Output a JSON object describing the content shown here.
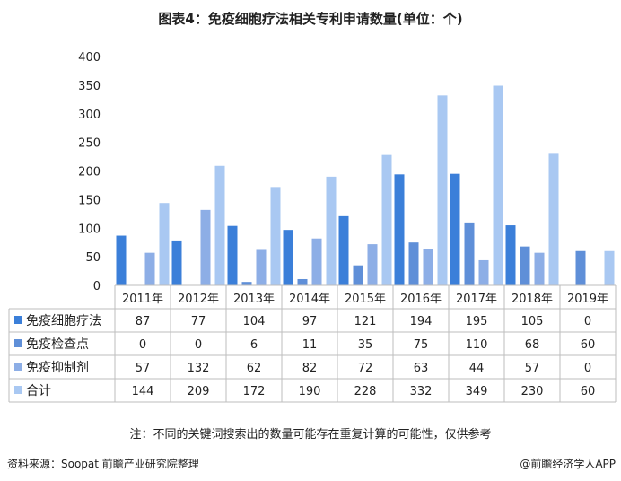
{
  "title": "图表4：免疫细胞疗法相关专利申请数量(单位：个)",
  "note": "注：不同的关键词搜索出的数量可能存在重复计算的可能性，仅供参考",
  "source": "资料来源：Soopat 前瞻产业研究院整理",
  "brand": "@前瞻经济学人APP",
  "colors": {
    "免疫细胞疗法": "#3b7fd9",
    "免疫检查点": "#5f8fd8",
    "免疫抑制剂": "#8daee6",
    "合计": "#a9c8f2"
  },
  "chart_data": {
    "type": "bar",
    "categories": [
      "2011年",
      "2012年",
      "2013年",
      "2014年",
      "2015年",
      "2016年",
      "2017年",
      "2018年",
      "2019年"
    ],
    "series": [
      {
        "name": "免疫细胞疗法",
        "values": [
          87,
          77,
          104,
          97,
          121,
          194,
          195,
          105,
          0
        ]
      },
      {
        "name": "免疫检查点",
        "values": [
          0,
          0,
          6,
          11,
          35,
          75,
          110,
          68,
          60
        ]
      },
      {
        "name": "免疫抑制剂",
        "values": [
          57,
          132,
          62,
          82,
          72,
          63,
          44,
          57,
          0
        ]
      },
      {
        "name": "合计",
        "values": [
          144,
          209,
          172,
          190,
          228,
          332,
          349,
          230,
          60
        ]
      }
    ],
    "yticks": [
      0,
      50,
      100,
      150,
      200,
      250,
      300,
      350,
      400
    ],
    "ylim": [
      0,
      400
    ],
    "legend": "data-table",
    "grid": false
  }
}
